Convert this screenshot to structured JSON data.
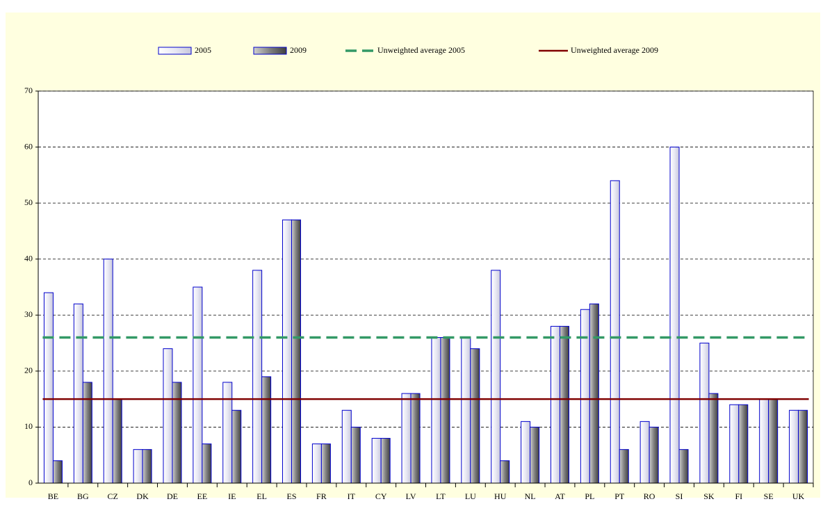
{
  "chart_data": {
    "type": "bar",
    "categories": [
      "BE",
      "BG",
      "CZ",
      "DK",
      "DE",
      "EE",
      "IE",
      "EL",
      "ES",
      "FR",
      "IT",
      "CY",
      "LV",
      "LT",
      "LU",
      "HU",
      "NL",
      "AT",
      "PL",
      "PT",
      "RO",
      "SI",
      "SK",
      "FI",
      "SE",
      "UK"
    ],
    "series": [
      {
        "name": "2005",
        "color": "#e8e8f4",
        "values": [
          34,
          32,
          40,
          6,
          24,
          35,
          18,
          38,
          47,
          7,
          13,
          8,
          16,
          26,
          26,
          38,
          11,
          28,
          31,
          54,
          11,
          60,
          25,
          14,
          15,
          13
        ]
      },
      {
        "name": "2009",
        "color": "#808080",
        "values": [
          4,
          18,
          15,
          6,
          18,
          7,
          13,
          19,
          47,
          7,
          10,
          8,
          16,
          26,
          24,
          4,
          10,
          28,
          32,
          6,
          10,
          6,
          16,
          14,
          15,
          13
        ]
      }
    ],
    "reference_lines": [
      {
        "name": "Unweighted average 2005",
        "color": "#339966",
        "value": 26,
        "style": "dashed"
      },
      {
        "name": "Unweighted average 2009",
        "color": "#800000",
        "value": 15,
        "style": "solid"
      }
    ],
    "ylim": [
      0,
      70
    ],
    "yticks": [
      0,
      10,
      20,
      30,
      40,
      50,
      60,
      70
    ],
    "grid": true
  }
}
